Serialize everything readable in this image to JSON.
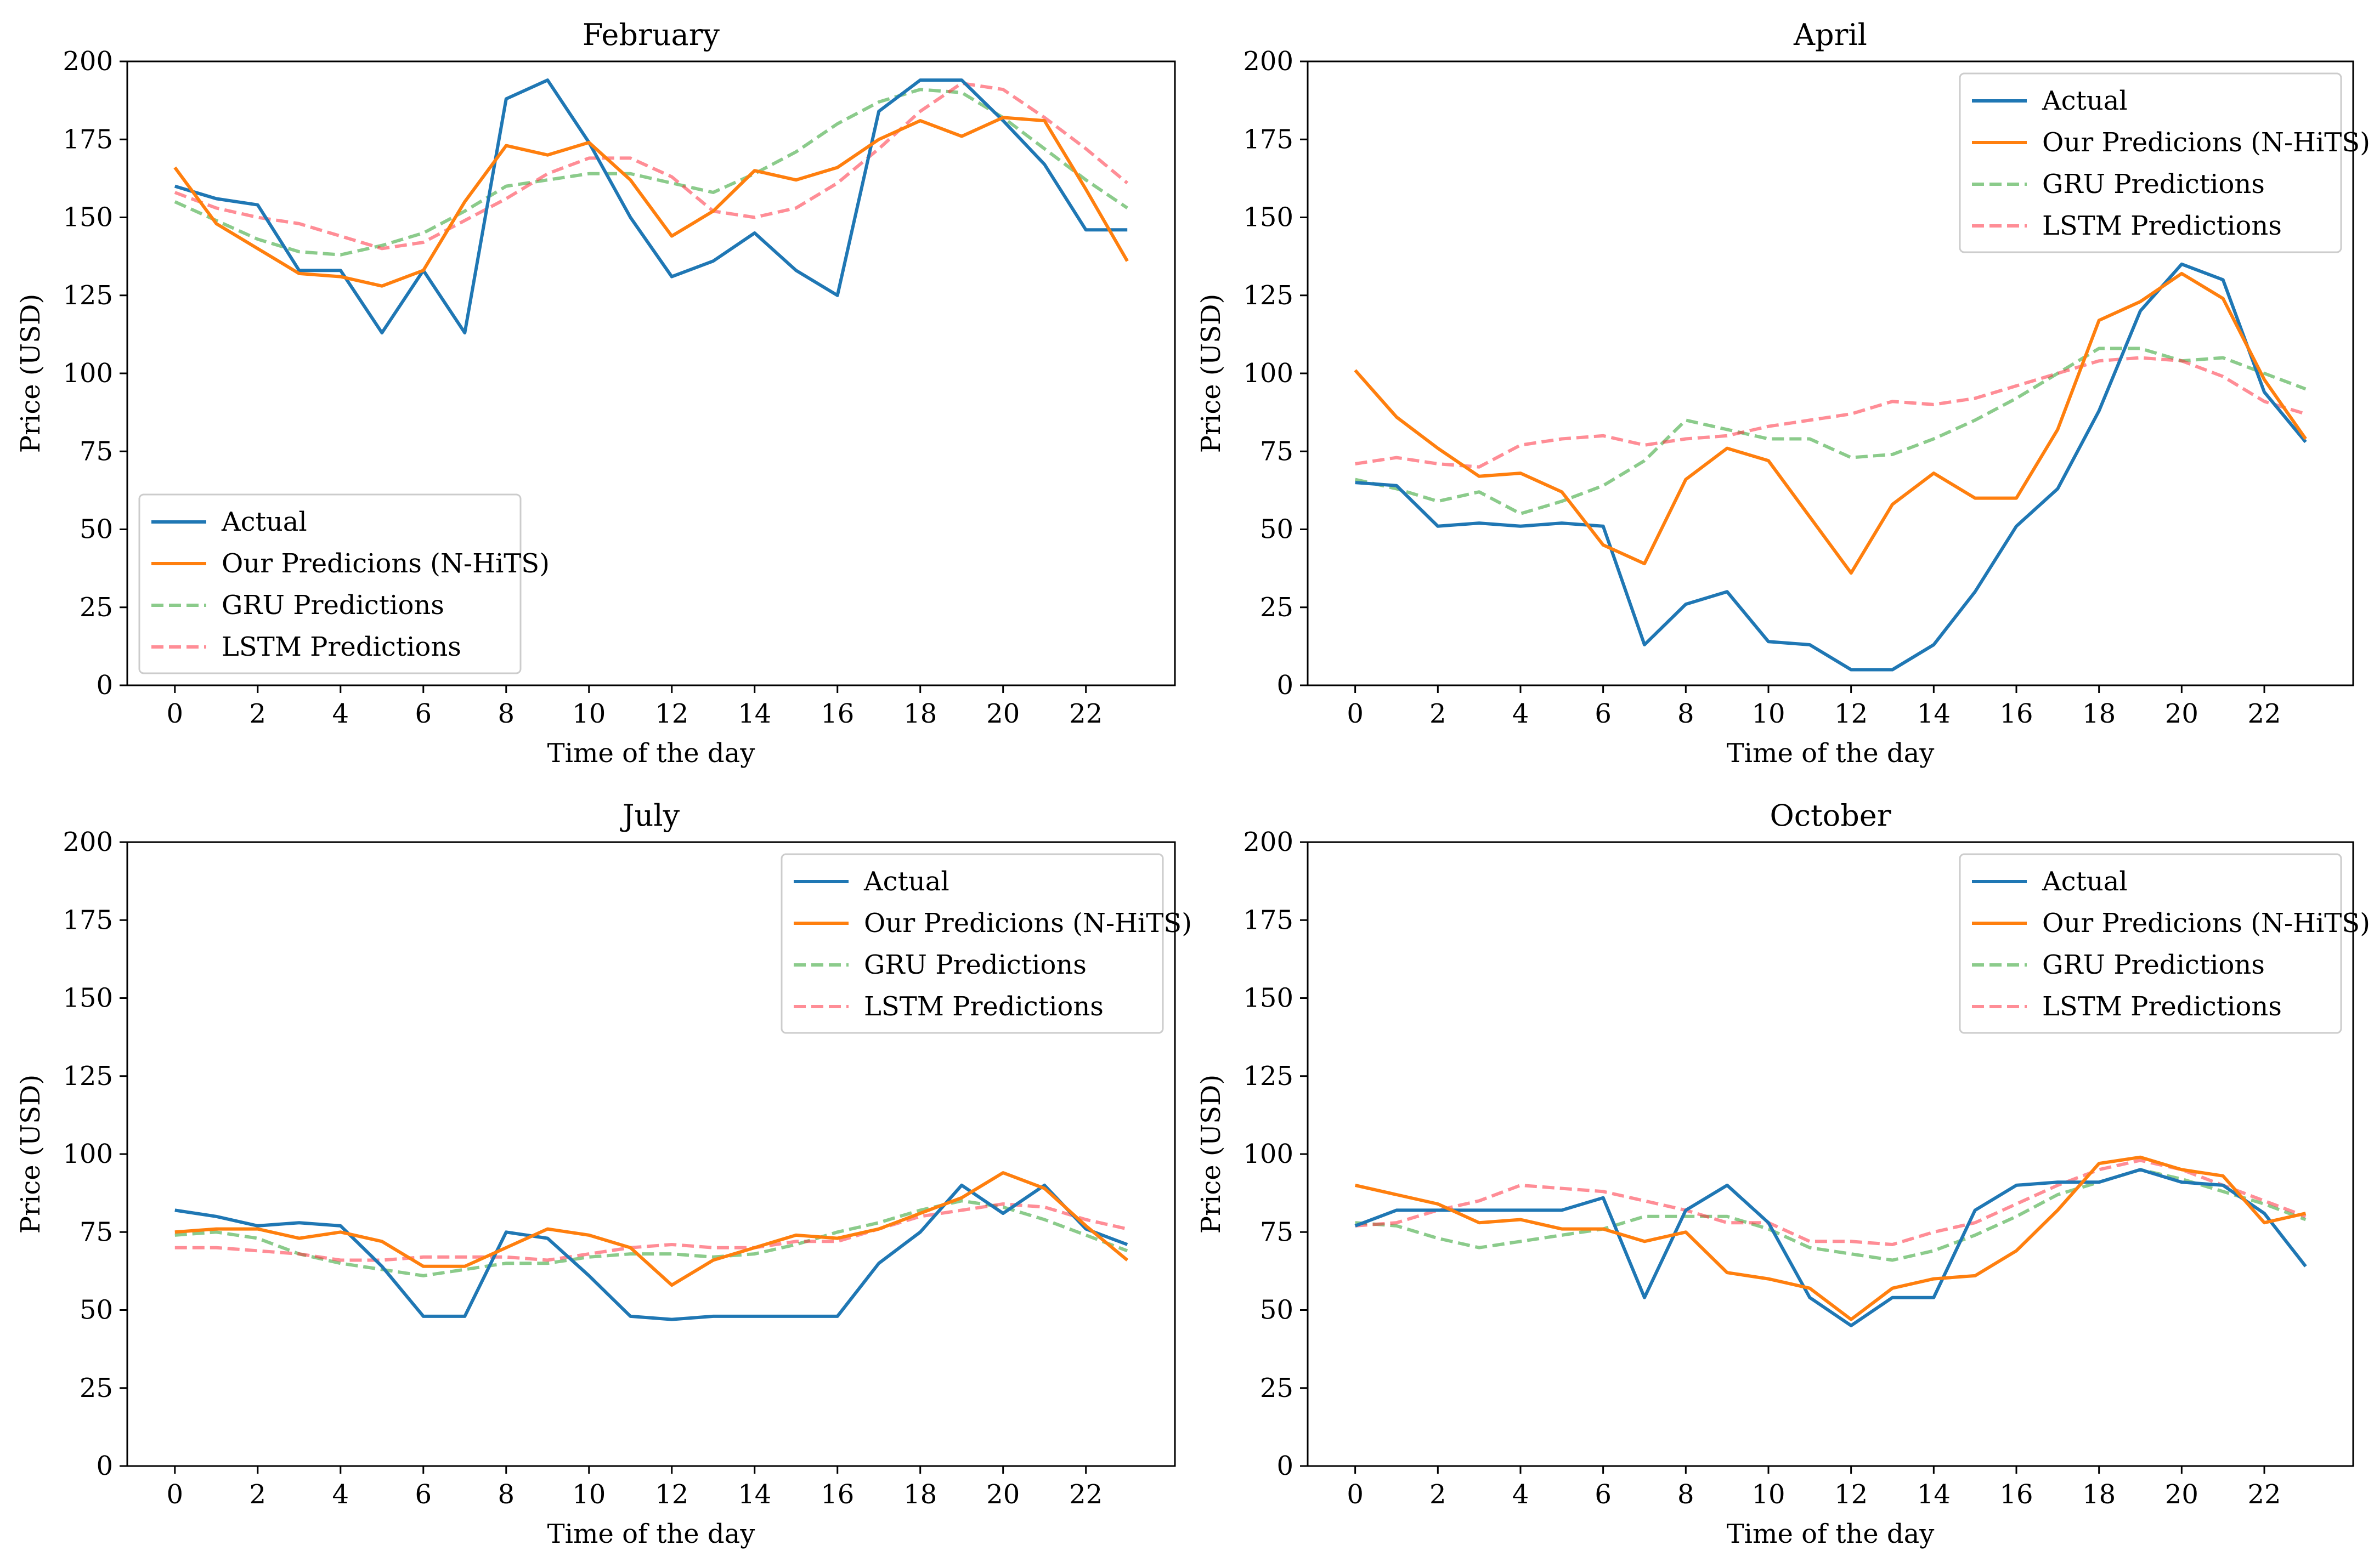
{
  "figure": {
    "style": {
      "colors": {
        "actual": "#1f77b4",
        "nhits": "#ff7f0e",
        "gru": "#2ca02c",
        "lstm": "#ff3040"
      }
    }
  },
  "chart_data": [
    {
      "type": "line",
      "title": "February",
      "xlabel": "Time of the day",
      "ylabel": "Price (USD)",
      "xlim": [
        -1.15,
        24.15
      ],
      "ylim": [
        0,
        200
      ],
      "xticks": [
        0,
        2,
        4,
        6,
        8,
        10,
        12,
        14,
        16,
        18,
        20,
        22
      ],
      "xtick_labels": [
        "0",
        "2",
        "4",
        "6",
        "8",
        "10",
        "12",
        "14",
        "16",
        "18",
        "20",
        "22"
      ],
      "yticks": [
        0,
        25,
        50,
        75,
        100,
        125,
        150,
        175,
        200
      ],
      "ytick_labels": [
        "0",
        "25",
        "50",
        "75",
        "100",
        "125",
        "150",
        "175",
        "200"
      ],
      "legend": {
        "position": "lower-left",
        "entries": [
          "Actual",
          "Our Predicions (N-HiTS)",
          "GRU Predictions",
          "LSTM Predictions"
        ]
      },
      "x": [
        0,
        1,
        2,
        3,
        4,
        5,
        6,
        7,
        8,
        9,
        10,
        11,
        12,
        13,
        14,
        15,
        16,
        17,
        18,
        19,
        20,
        21,
        22,
        23
      ],
      "series": [
        {
          "name": "Actual",
          "key": "actual",
          "dashed": false,
          "values": [
            160,
            156,
            154,
            133,
            133,
            113,
            133,
            113,
            188,
            194,
            174,
            150,
            131,
            136,
            145,
            133,
            125,
            184,
            194,
            194,
            181,
            167,
            146,
            146
          ]
        },
        {
          "name": "Our Predicions (N-HiTS)",
          "key": "nhits",
          "dashed": false,
          "values": [
            166,
            148,
            140,
            132,
            131,
            128,
            133,
            155,
            173,
            170,
            174,
            162,
            144,
            152,
            165,
            162,
            166,
            175,
            181,
            176,
            182,
            181,
            159,
            136
          ]
        },
        {
          "name": "GRU Predictions",
          "key": "gru",
          "dashed": true,
          "values": [
            155,
            149,
            143,
            139,
            138,
            141,
            145,
            152,
            160,
            162,
            164,
            164,
            161,
            158,
            164,
            171,
            180,
            187,
            191,
            190,
            182,
            172,
            162,
            153
          ]
        },
        {
          "name": "LSTM Predictions",
          "key": "lstm",
          "dashed": true,
          "values": [
            158,
            153,
            150,
            148,
            144,
            140,
            142,
            149,
            156,
            164,
            169,
            169,
            163,
            152,
            150,
            153,
            161,
            172,
            184,
            193,
            191,
            182,
            172,
            161
          ]
        }
      ]
    },
    {
      "type": "line",
      "title": "April",
      "xlabel": "Time of the day",
      "ylabel": "Price (USD)",
      "xlim": [
        -1.15,
        24.15
      ],
      "ylim": [
        0,
        200
      ],
      "xticks": [
        0,
        2,
        4,
        6,
        8,
        10,
        12,
        14,
        16,
        18,
        20,
        22
      ],
      "xtick_labels": [
        "0",
        "2",
        "4",
        "6",
        "8",
        "10",
        "12",
        "14",
        "16",
        "18",
        "20",
        "22"
      ],
      "yticks": [
        0,
        25,
        50,
        75,
        100,
        125,
        150,
        175,
        200
      ],
      "ytick_labels": [
        "0",
        "25",
        "50",
        "75",
        "100",
        "125",
        "150",
        "175",
        "200"
      ],
      "legend": {
        "position": "upper-right",
        "entries": [
          "Actual",
          "Our Predicions (N-HiTS)",
          "GRU Predictions",
          "LSTM Predictions"
        ]
      },
      "x": [
        0,
        1,
        2,
        3,
        4,
        5,
        6,
        7,
        8,
        9,
        10,
        11,
        12,
        13,
        14,
        15,
        16,
        17,
        18,
        19,
        20,
        21,
        22,
        23
      ],
      "series": [
        {
          "name": "Actual",
          "key": "actual",
          "dashed": false,
          "values": [
            65,
            64,
            51,
            52,
            51,
            52,
            51,
            13,
            26,
            30,
            14,
            13,
            5,
            5,
            13,
            30,
            51,
            63,
            88,
            120,
            135,
            130,
            94,
            78
          ]
        },
        {
          "name": "Our Predicions (N-HiTS)",
          "key": "nhits",
          "dashed": false,
          "values": [
            101,
            86,
            76,
            67,
            68,
            62,
            45,
            39,
            66,
            76,
            72,
            54,
            36,
            58,
            68,
            60,
            60,
            82,
            117,
            123,
            132,
            124,
            98,
            79
          ]
        },
        {
          "name": "GRU Predictions",
          "key": "gru",
          "dashed": true,
          "values": [
            66,
            63,
            59,
            62,
            55,
            59,
            64,
            72,
            85,
            82,
            79,
            79,
            73,
            74,
            79,
            85,
            92,
            100,
            108,
            108,
            104,
            105,
            100,
            95
          ]
        },
        {
          "name": "LSTM Predictions",
          "key": "lstm",
          "dashed": true,
          "values": [
            71,
            73,
            71,
            70,
            77,
            79,
            80,
            77,
            79,
            80,
            83,
            85,
            87,
            91,
            90,
            92,
            96,
            100,
            104,
            105,
            104,
            99,
            91,
            87
          ]
        }
      ]
    },
    {
      "type": "line",
      "title": "July",
      "xlabel": "Time of the day",
      "ylabel": "Price (USD)",
      "xlim": [
        -1.15,
        24.15
      ],
      "ylim": [
        0,
        200
      ],
      "xticks": [
        0,
        2,
        4,
        6,
        8,
        10,
        12,
        14,
        16,
        18,
        20,
        22
      ],
      "xtick_labels": [
        "0",
        "2",
        "4",
        "6",
        "8",
        "10",
        "12",
        "14",
        "16",
        "18",
        "20",
        "22"
      ],
      "yticks": [
        0,
        25,
        50,
        75,
        100,
        125,
        150,
        175,
        200
      ],
      "ytick_labels": [
        "0",
        "25",
        "50",
        "75",
        "100",
        "125",
        "150",
        "175",
        "200"
      ],
      "legend": {
        "position": "upper-right",
        "entries": [
          "Actual",
          "Our Predicions (N-HiTS)",
          "GRU Predictions",
          "LSTM Predictions"
        ]
      },
      "x": [
        0,
        1,
        2,
        3,
        4,
        5,
        6,
        7,
        8,
        9,
        10,
        11,
        12,
        13,
        14,
        15,
        16,
        17,
        18,
        19,
        20,
        21,
        22,
        23
      ],
      "series": [
        {
          "name": "Actual",
          "key": "actual",
          "dashed": false,
          "values": [
            82,
            80,
            77,
            78,
            77,
            64,
            48,
            48,
            75,
            73,
            61,
            48,
            47,
            48,
            48,
            48,
            48,
            65,
            75,
            90,
            81,
            90,
            76,
            71
          ]
        },
        {
          "name": "Our Predicions (N-HiTS)",
          "key": "nhits",
          "dashed": false,
          "values": [
            75,
            76,
            76,
            73,
            75,
            72,
            64,
            64,
            70,
            76,
            74,
            70,
            58,
            66,
            70,
            74,
            73,
            76,
            81,
            86,
            94,
            89,
            77,
            66
          ]
        },
        {
          "name": "GRU Predictions",
          "key": "gru",
          "dashed": true,
          "values": [
            74,
            75,
            73,
            68,
            65,
            63,
            61,
            63,
            65,
            65,
            67,
            68,
            68,
            67,
            68,
            71,
            75,
            78,
            82,
            85,
            83,
            79,
            74,
            69
          ]
        },
        {
          "name": "LSTM Predictions",
          "key": "lstm",
          "dashed": true,
          "values": [
            70,
            70,
            69,
            68,
            66,
            66,
            67,
            67,
            67,
            66,
            68,
            70,
            71,
            70,
            70,
            72,
            72,
            76,
            80,
            82,
            84,
            83,
            79,
            76
          ]
        }
      ]
    },
    {
      "type": "line",
      "title": "October",
      "xlabel": "Time of the day",
      "ylabel": "Price (USD)",
      "xlim": [
        -1.15,
        24.15
      ],
      "ylim": [
        0,
        200
      ],
      "xticks": [
        0,
        2,
        4,
        6,
        8,
        10,
        12,
        14,
        16,
        18,
        20,
        22
      ],
      "xtick_labels": [
        "0",
        "2",
        "4",
        "6",
        "8",
        "10",
        "12",
        "14",
        "16",
        "18",
        "20",
        "22"
      ],
      "yticks": [
        0,
        25,
        50,
        75,
        100,
        125,
        150,
        175,
        200
      ],
      "ytick_labels": [
        "0",
        "25",
        "50",
        "75",
        "100",
        "125",
        "150",
        "175",
        "200"
      ],
      "legend": {
        "position": "upper-right",
        "entries": [
          "Actual",
          "Our Predicions (N-HiTS)",
          "GRU Predictions",
          "LSTM Predictions"
        ]
      },
      "x": [
        0,
        1,
        2,
        3,
        4,
        5,
        6,
        7,
        8,
        9,
        10,
        11,
        12,
        13,
        14,
        15,
        16,
        17,
        18,
        19,
        20,
        21,
        22,
        23
      ],
      "series": [
        {
          "name": "Actual",
          "key": "actual",
          "dashed": false,
          "values": [
            77,
            82,
            82,
            82,
            82,
            82,
            86,
            54,
            82,
            90,
            78,
            54,
            45,
            54,
            54,
            82,
            90,
            91,
            91,
            95,
            91,
            90,
            81,
            64
          ]
        },
        {
          "name": "Our Predicions (N-HiTS)",
          "key": "nhits",
          "dashed": false,
          "values": [
            90,
            87,
            84,
            78,
            79,
            76,
            76,
            72,
            75,
            62,
            60,
            57,
            47,
            57,
            60,
            61,
            69,
            82,
            97,
            99,
            95,
            93,
            78,
            81
          ]
        },
        {
          "name": "GRU Predictions",
          "key": "gru",
          "dashed": true,
          "values": [
            78,
            77,
            73,
            70,
            72,
            74,
            76,
            80,
            80,
            80,
            76,
            70,
            68,
            66,
            69,
            74,
            80,
            87,
            91,
            95,
            92,
            88,
            84,
            79
          ]
        },
        {
          "name": "LSTM Predictions",
          "key": "lstm",
          "dashed": true,
          "values": [
            77,
            78,
            82,
            85,
            90,
            89,
            88,
            85,
            82,
            78,
            78,
            72,
            72,
            71,
            75,
            78,
            84,
            90,
            95,
            98,
            95,
            90,
            85,
            80
          ]
        }
      ]
    }
  ]
}
